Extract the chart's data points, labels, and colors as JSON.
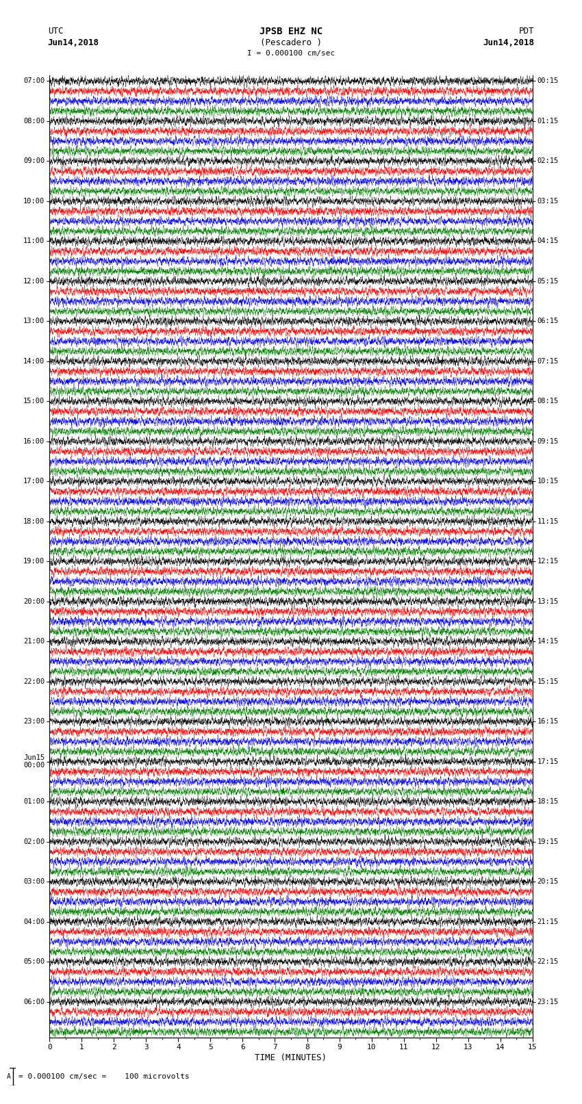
{
  "title_line1": "JPSB EHZ NC",
  "title_line2": "(Pescadero )",
  "title_line3": "I = 0.000100 cm/sec",
  "utc_label": "UTC",
  "utc_date": "Jun14,2018",
  "pdt_label": "PDT",
  "pdt_date": "Jun14,2018",
  "xlabel": "TIME (MINUTES)",
  "scale_text": "= 0.000100 cm/sec =    100 microvolts",
  "left_times": [
    "07:00",
    "08:00",
    "09:00",
    "10:00",
    "11:00",
    "12:00",
    "13:00",
    "14:00",
    "15:00",
    "16:00",
    "17:00",
    "18:00",
    "19:00",
    "20:00",
    "21:00",
    "22:00",
    "23:00",
    "Jun15\n00:00",
    "01:00",
    "02:00",
    "03:00",
    "04:00",
    "05:00",
    "06:00"
  ],
  "right_times": [
    "00:15",
    "01:15",
    "02:15",
    "03:15",
    "04:15",
    "05:15",
    "06:15",
    "07:15",
    "08:15",
    "09:15",
    "10:15",
    "11:15",
    "12:15",
    "13:15",
    "14:15",
    "15:15",
    "16:15",
    "17:15",
    "18:15",
    "19:15",
    "20:15",
    "21:15",
    "22:15",
    "23:15"
  ],
  "n_rows": 96,
  "n_pts": 9000,
  "colors": [
    "black",
    "red",
    "blue",
    "green"
  ],
  "bg_color": "white",
  "xmin": 0,
  "xmax": 15,
  "fig_width": 8.5,
  "fig_height": 16.13,
  "dpi": 100
}
